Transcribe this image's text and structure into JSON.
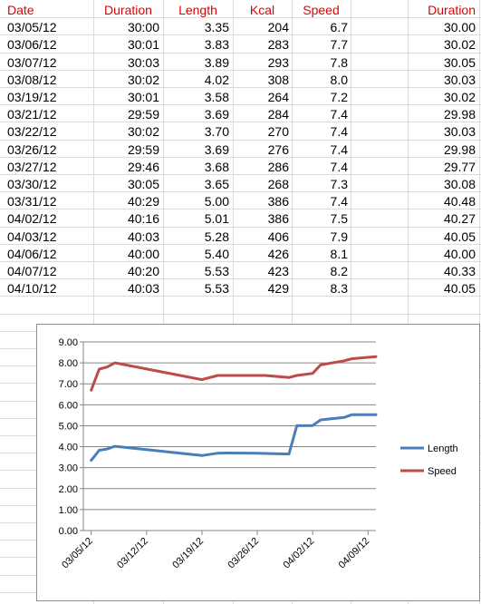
{
  "table": {
    "headers": [
      "Date",
      "Duration",
      "Length",
      "Kcal",
      "Speed",
      "Duration"
    ],
    "rows": [
      [
        "03/05/12",
        "30:00",
        "3.35",
        "204",
        "6.7",
        "30.00"
      ],
      [
        "03/06/12",
        "30:01",
        "3.83",
        "283",
        "7.7",
        "30.02"
      ],
      [
        "03/07/12",
        "30:03",
        "3.89",
        "293",
        "7.8",
        "30.05"
      ],
      [
        "03/08/12",
        "30:02",
        "4.02",
        "308",
        "8.0",
        "30.03"
      ],
      [
        "03/19/12",
        "30:01",
        "3.58",
        "264",
        "7.2",
        "30.02"
      ],
      [
        "03/21/12",
        "29:59",
        "3.69",
        "284",
        "7.4",
        "29.98"
      ],
      [
        "03/22/12",
        "30:02",
        "3.70",
        "270",
        "7.4",
        "30.03"
      ],
      [
        "03/26/12",
        "29:59",
        "3.69",
        "276",
        "7.4",
        "29.98"
      ],
      [
        "03/27/12",
        "29:46",
        "3.68",
        "286",
        "7.4",
        "29.77"
      ],
      [
        "03/30/12",
        "30:05",
        "3.65",
        "268",
        "7.3",
        "30.08"
      ],
      [
        "03/31/12",
        "40:29",
        "5.00",
        "386",
        "7.4",
        "40.48"
      ],
      [
        "04/02/12",
        "40:16",
        "5.01",
        "386",
        "7.5",
        "40.27"
      ],
      [
        "04/03/12",
        "40:03",
        "5.28",
        "406",
        "7.9",
        "40.05"
      ],
      [
        "04/06/12",
        "40:00",
        "5.40",
        "426",
        "8.1",
        "40.00"
      ],
      [
        "04/07/12",
        "40:20",
        "5.53",
        "423",
        "8.2",
        "40.33"
      ],
      [
        "04/10/12",
        "40:03",
        "5.53",
        "429",
        "8.3",
        "40.05"
      ]
    ]
  },
  "chart_data": {
    "type": "line",
    "x": [
      "03/05/12",
      "03/06/12",
      "03/07/12",
      "03/08/12",
      "03/19/12",
      "03/21/12",
      "03/22/12",
      "03/26/12",
      "03/27/12",
      "03/30/12",
      "03/31/12",
      "04/02/12",
      "04/03/12",
      "04/06/12",
      "04/07/12",
      "04/10/12"
    ],
    "series": [
      {
        "name": "Length",
        "color": "#4a7ebb",
        "values": [
          3.35,
          3.83,
          3.89,
          4.02,
          3.58,
          3.69,
          3.7,
          3.69,
          3.68,
          3.65,
          5.0,
          5.01,
          5.28,
          5.4,
          5.53,
          5.53
        ]
      },
      {
        "name": "Speed",
        "color": "#be4b48",
        "values": [
          6.7,
          7.7,
          7.8,
          8.0,
          7.2,
          7.4,
          7.4,
          7.4,
          7.4,
          7.3,
          7.4,
          7.5,
          7.9,
          8.1,
          8.2,
          8.3
        ]
      }
    ],
    "ylim": [
      0,
      9
    ],
    "yticks": [
      "0.00",
      "1.00",
      "2.00",
      "3.00",
      "4.00",
      "5.00",
      "6.00",
      "7.00",
      "8.00",
      "9.00"
    ],
    "xlim": [
      "03/04/12",
      "04/10/12"
    ],
    "xticks": [
      "03/05/12",
      "03/12/12",
      "03/19/12",
      "03/26/12",
      "04/02/12",
      "04/09/12"
    ],
    "grid": true,
    "legend": "right"
  }
}
